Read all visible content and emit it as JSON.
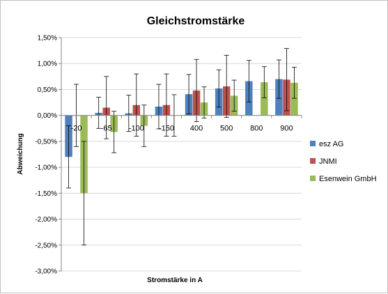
{
  "chart_data": {
    "type": "bar",
    "title": "Gleichstromstärke",
    "xlabel": "Stromstärke in A",
    "ylabel": "Abweichung",
    "categories": [
      "-20",
      "-65",
      "-100",
      "-150",
      "400",
      "500",
      "800",
      "900"
    ],
    "ylim": [
      -3.0,
      1.5
    ],
    "y_ticks": [
      1.5,
      1.0,
      0.5,
      0.0,
      -0.5,
      -1.0,
      -1.5,
      -2.0,
      -2.5,
      -3.0
    ],
    "y_tick_labels": [
      "1,50%",
      "1,00%",
      "0,50%",
      "0,00%",
      "-0,50%",
      "-1,00%",
      "-1,50%",
      "-2,00%",
      "-2,50%",
      "-3,00%"
    ],
    "y_unit": "%",
    "series": [
      {
        "name": "esz AG",
        "color": "#4F81BD",
        "values": [
          -0.8,
          0.05,
          0.04,
          0.17,
          0.41,
          0.52,
          0.66,
          0.7
        ],
        "error": [
          0.6,
          0.3,
          0.35,
          0.43,
          0.38,
          0.36,
          0.4,
          0.37
        ]
      },
      {
        "name": "JNMI",
        "color": "#C0504D",
        "values": [
          0.0,
          0.15,
          0.2,
          0.2,
          0.48,
          0.56,
          null,
          0.69
        ],
        "error": [
          0.6,
          0.6,
          0.6,
          0.6,
          0.6,
          0.6,
          null,
          0.6
        ]
      },
      {
        "name": "Esenwein GmbH",
        "color": "#9BBB59",
        "values": [
          -1.5,
          -0.32,
          -0.2,
          0.0,
          0.25,
          0.38,
          0.64,
          0.63
        ],
        "error": [
          1.0,
          0.4,
          0.4,
          0.4,
          0.3,
          0.3,
          0.3,
          0.3
        ]
      }
    ],
    "legend_position": "right",
    "grid": true
  }
}
